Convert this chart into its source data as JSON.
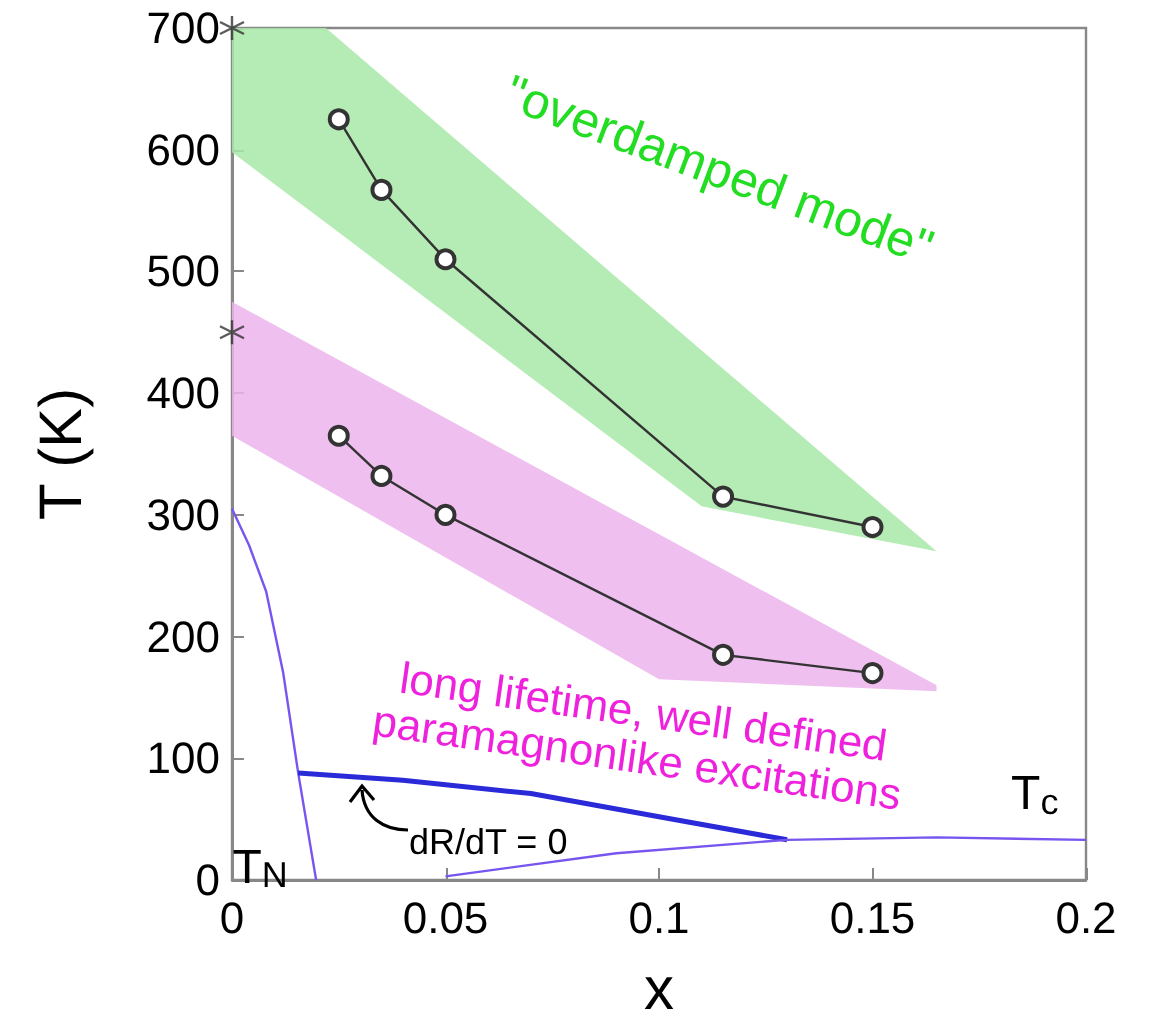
{
  "chart_data": {
    "type": "line",
    "xlabel": "x",
    "ylabel": "T (K)",
    "xlim": [
      0,
      0.2
    ],
    "xticks": [
      0,
      0.05,
      0.1,
      0.15,
      0.2
    ],
    "ylim": [
      0,
      700
    ],
    "yticks": [
      0,
      100,
      200,
      300,
      400,
      500,
      600,
      700
    ],
    "grid": false,
    "series": [
      {
        "color": "#a8e8a8",
        "x": [
          0,
          0.022,
          0.11,
          0.165
        ],
        "values": [
          null,
          null,
          null,
          null
        ],
        "lower": [
          598,
          540,
          307,
          270
        ],
        "upper": [
          700,
          700,
          435,
          270
        ]
      },
      {
        "color": "#ecb4ec",
        "x": [
          0,
          0.1,
          0.165
        ],
        "values": [
          null,
          null,
          null
        ],
        "lower": [
          365,
          165,
          155
        ],
        "upper": [
          475,
          284,
          160
        ]
      },
      {
        "color": "#333333",
        "marker": "circle",
        "x": [
          0.025,
          0.035,
          0.05,
          0.115,
          0.15
        ],
        "values": [
          625,
          567,
          510,
          315,
          290
        ]
      },
      {
        "color": "#333333",
        "marker": "circle",
        "x": [
          0.025,
          0.035,
          0.05,
          0.115,
          0.15
        ],
        "values": [
          365,
          332,
          300,
          185,
          170
        ]
      },
      {
        "type": "scatter",
        "color": "#333333",
        "marker": "cross",
        "x": [
          0,
          0
        ],
        "values": [
          700,
          450
        ]
      },
      {
        "color": "#7755ee",
        "marker": "none",
        "x": [
          0,
          0.004,
          0.008,
          0.012,
          0.0155,
          0.0197
        ],
        "values": [
          305,
          275,
          237,
          170,
          88,
          0
        ]
      },
      {
        "color": "#2a2ad8",
        "marker": "none",
        "x": [
          0.0155,
          0.04,
          0.07,
          0.1,
          0.13
        ],
        "values": [
          88,
          82,
          71,
          52,
          33
        ]
      },
      {
        "color": "#7755ee",
        "marker": "none",
        "x": [
          0.05,
          0.09,
          0.13,
          0.165,
          0.2
        ],
        "values": [
          3,
          22,
          33,
          35,
          33
        ]
      }
    ],
    "annotations": [
      "\"overdamped mode\"",
      "long lifetime, well defined\nparamagnonlike excitations",
      "T$_{N}$",
      "T$_{c}$",
      "dR/dT = 0"
    ]
  }
}
